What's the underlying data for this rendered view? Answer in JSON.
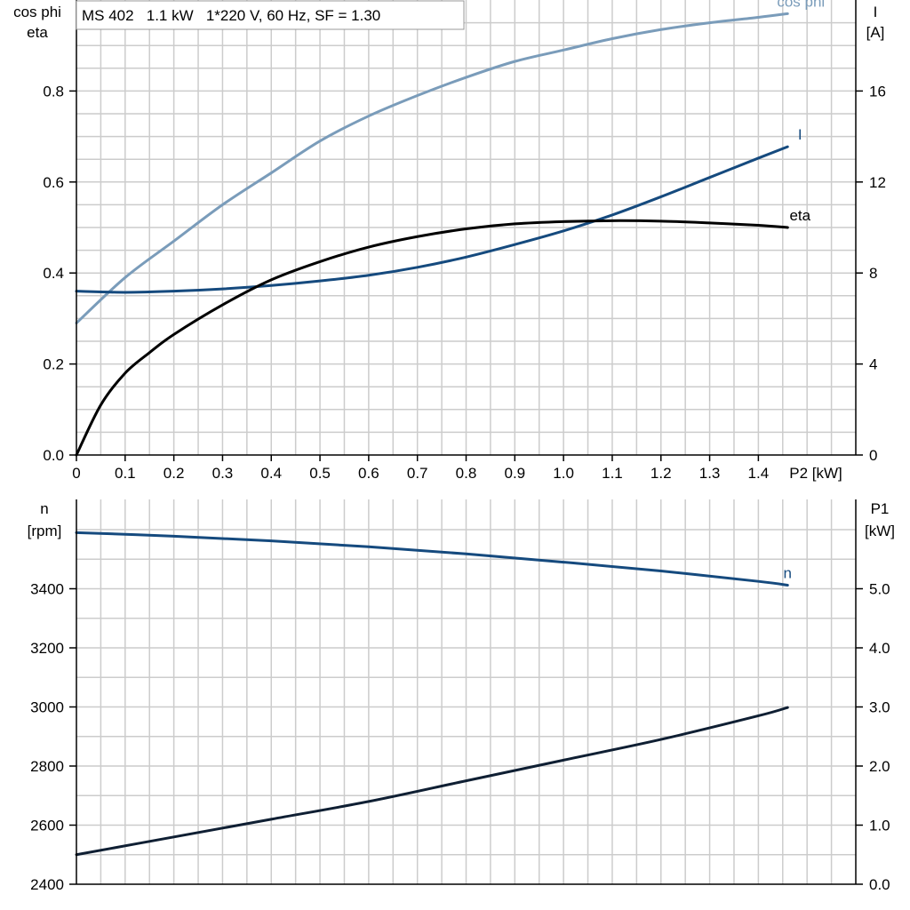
{
  "title": "MS 402   1.1 kW   1*220 V, 60 Hz, SF = 1.30",
  "colors": {
    "cos_phi": "#7a9cba",
    "current": "#154a7e",
    "eta": "#000000",
    "speed": "#154a7e",
    "p1": "#0f1f33",
    "grid": "#cccccc"
  },
  "chart_data": [
    {
      "type": "line",
      "title": "MS 402   1.1 kW   1*220 V, 60 Hz, SF = 1.30",
      "xlabel": "P2 [kW]",
      "ylabel_left": [
        "cos phi",
        "eta"
      ],
      "ylabel_right": [
        "I",
        "[A]"
      ],
      "xlim": [
        0,
        1.6
      ],
      "ylim_left": [
        0,
        1.0
      ],
      "ylim_right": [
        0,
        20
      ],
      "x_ticks": [
        "0",
        "0.1",
        "0.2",
        "0.3",
        "0.4",
        "0.5",
        "0.6",
        "0.7",
        "0.8",
        "0.9",
        "1.0",
        "1.1",
        "1.2",
        "1.3",
        "1.4"
      ],
      "y_ticks_left": [
        "0.0",
        "0.2",
        "0.4",
        "0.6",
        "0.8"
      ],
      "y_ticks_right": [
        "0",
        "4",
        "8",
        "12",
        "16"
      ],
      "grid": true,
      "series": [
        {
          "name": "cos phi",
          "axis": "left",
          "x": [
            0,
            0.1,
            0.2,
            0.3,
            0.4,
            0.5,
            0.6,
            0.7,
            0.8,
            0.9,
            1.0,
            1.1,
            1.2,
            1.3,
            1.4,
            1.46
          ],
          "values": [
            0.29,
            0.39,
            0.47,
            0.55,
            0.62,
            0.69,
            0.745,
            0.79,
            0.83,
            0.865,
            0.89,
            0.915,
            0.935,
            0.95,
            0.962,
            0.97
          ]
        },
        {
          "name": "I",
          "axis": "right",
          "x": [
            0,
            0.1,
            0.2,
            0.3,
            0.4,
            0.5,
            0.6,
            0.7,
            0.8,
            0.9,
            1.0,
            1.1,
            1.2,
            1.3,
            1.4,
            1.46
          ],
          "values": [
            7.2,
            7.15,
            7.2,
            7.3,
            7.45,
            7.65,
            7.9,
            8.25,
            8.7,
            9.25,
            9.85,
            10.55,
            11.35,
            12.2,
            13.05,
            13.55
          ]
        },
        {
          "name": "eta",
          "axis": "left",
          "x": [
            0,
            0.05,
            0.1,
            0.15,
            0.2,
            0.3,
            0.4,
            0.5,
            0.6,
            0.7,
            0.8,
            0.9,
            1.0,
            1.1,
            1.2,
            1.3,
            1.4,
            1.46
          ],
          "values": [
            0.0,
            0.11,
            0.18,
            0.225,
            0.265,
            0.33,
            0.385,
            0.425,
            0.457,
            0.48,
            0.497,
            0.508,
            0.513,
            0.515,
            0.514,
            0.51,
            0.505,
            0.5
          ]
        }
      ]
    },
    {
      "type": "line",
      "ylabel_left": [
        "n",
        "[rpm]"
      ],
      "ylabel_right": [
        "P1",
        "[kW]"
      ],
      "xlim": [
        0,
        1.6
      ],
      "ylim_left": [
        2400,
        3600
      ],
      "ylim_right": [
        0,
        6
      ],
      "y_ticks_left": [
        "2400",
        "2600",
        "2800",
        "3000",
        "3200",
        "3400"
      ],
      "y_ticks_right": [
        "0.0",
        "1.0",
        "2.0",
        "3.0",
        "4.0",
        "5.0"
      ],
      "grid": true,
      "series": [
        {
          "name": "n",
          "axis": "left",
          "x": [
            0,
            0.2,
            0.4,
            0.6,
            0.8,
            1.0,
            1.2,
            1.4,
            1.46
          ],
          "values": [
            3590,
            3578,
            3562,
            3542,
            3518,
            3490,
            3460,
            3425,
            3412
          ]
        },
        {
          "axis": "right",
          "x": [
            0,
            0.2,
            0.4,
            0.6,
            0.8,
            1.0,
            1.2,
            1.4,
            1.46
          ],
          "values": [
            0.5,
            0.8,
            1.1,
            1.4,
            1.75,
            2.1,
            2.45,
            2.85,
            2.99
          ]
        }
      ]
    }
  ]
}
